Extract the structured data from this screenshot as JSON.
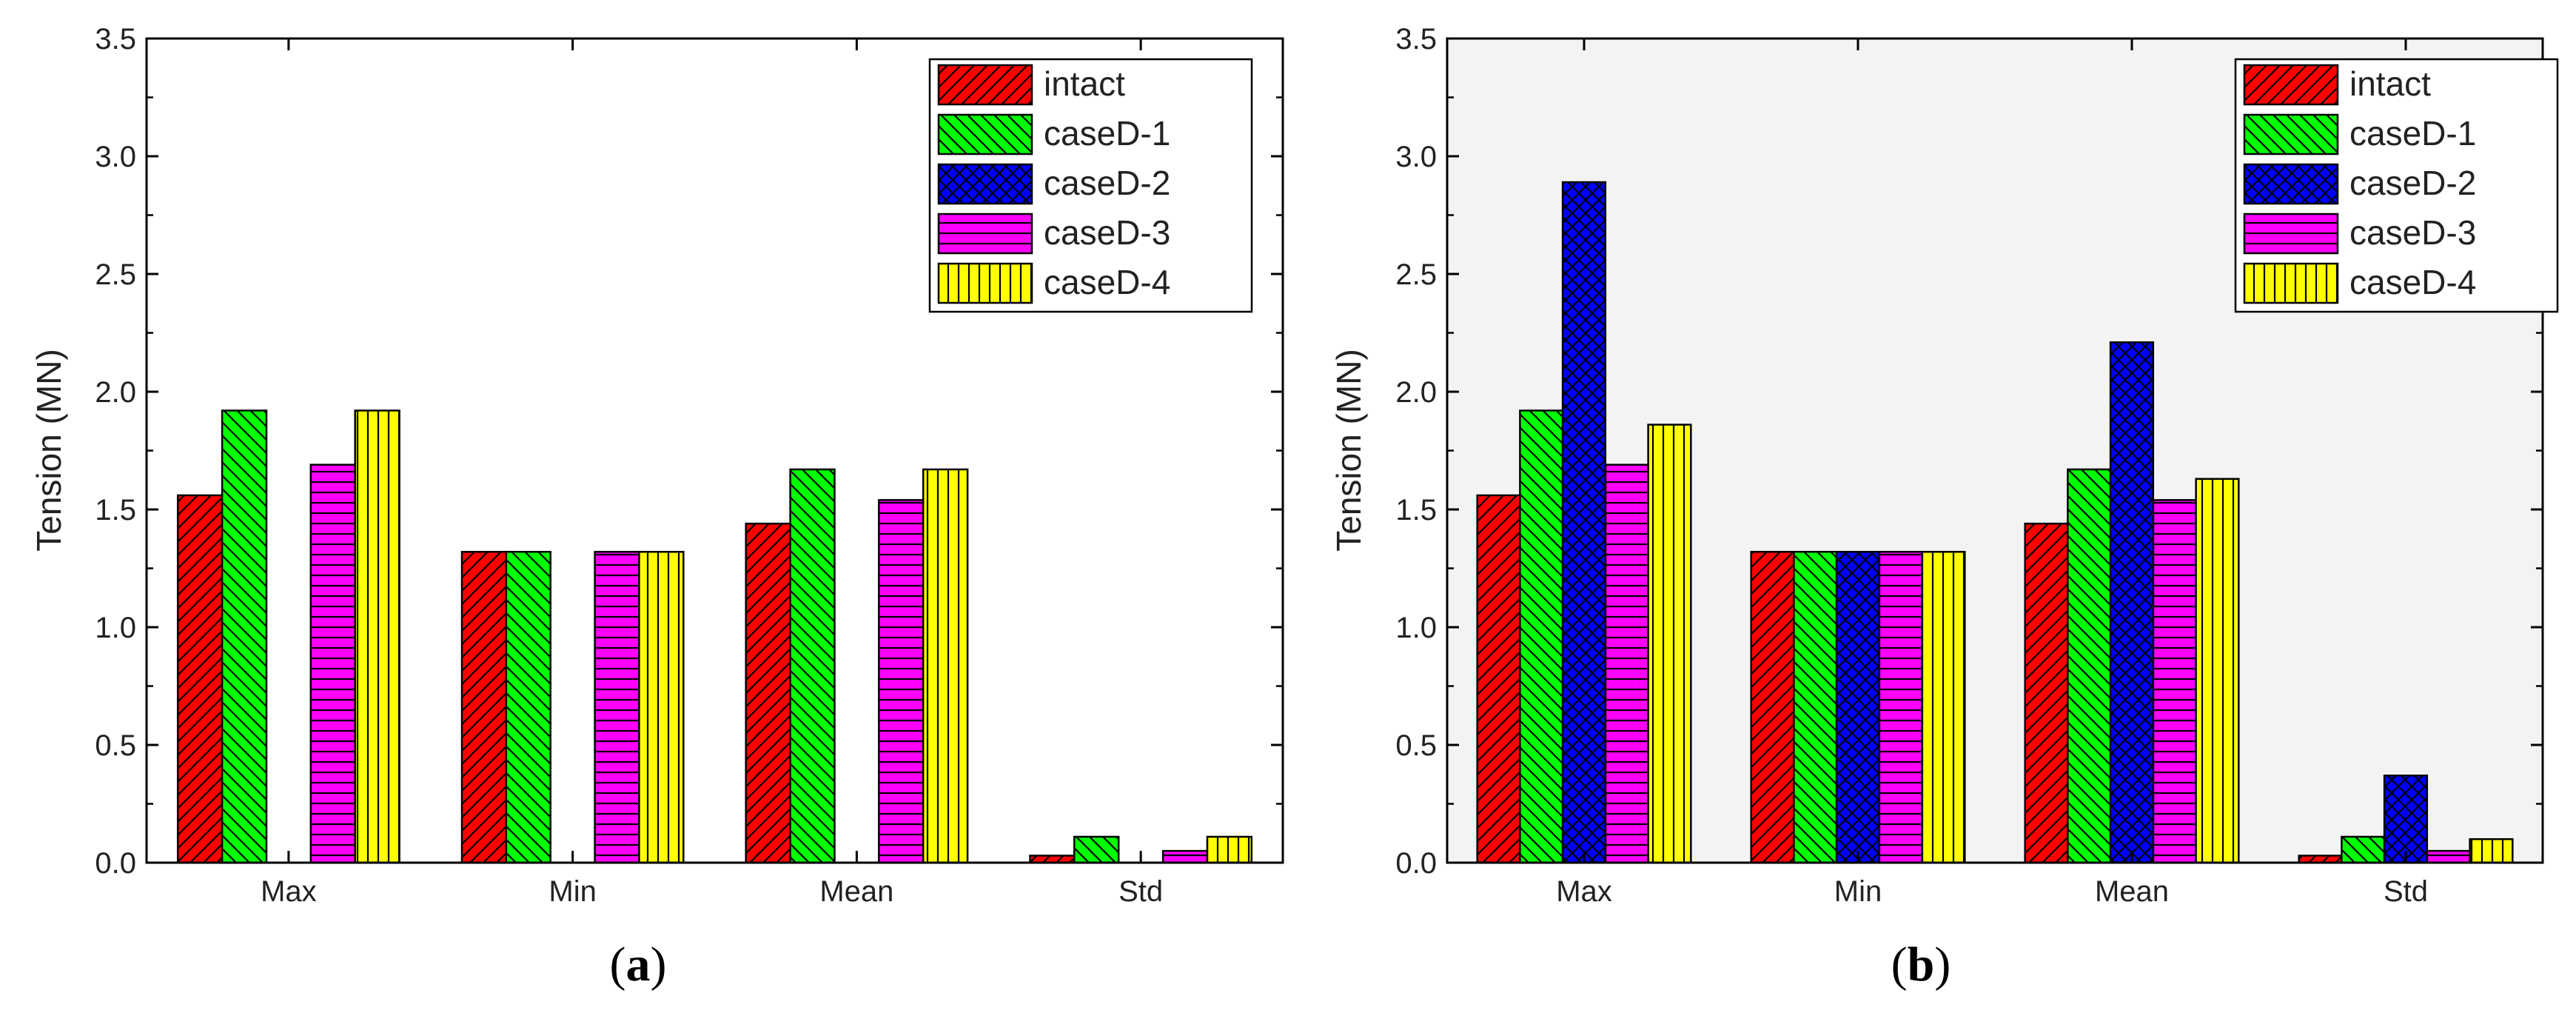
{
  "chart_data": [
    {
      "panel_label": "a",
      "type": "bar",
      "ylabel": "Tension (MN)",
      "xlabel": "",
      "ylim": [
        0,
        3.5
      ],
      "yticks": [
        "0.0",
        "0.5",
        "1.0",
        "1.5",
        "2.0",
        "2.5",
        "3.0",
        "3.5"
      ],
      "categories": [
        "Max",
        "Min",
        "Mean",
        "Std"
      ],
      "legend_position": "top-right",
      "series": [
        {
          "name": "intact",
          "color": "#ff0000",
          "pattern": "diag-fwd",
          "values": [
            1.56,
            1.32,
            1.44,
            0.03
          ]
        },
        {
          "name": "caseD-1",
          "color": "#00ff00",
          "pattern": "diag-back",
          "values": [
            1.92,
            1.32,
            1.67,
            0.11
          ]
        },
        {
          "name": "caseD-2",
          "color": "#0000ff",
          "pattern": "cross",
          "values": [
            0,
            0,
            0,
            0
          ]
        },
        {
          "name": "caseD-3",
          "color": "#ff00ff",
          "pattern": "horiz",
          "values": [
            1.69,
            1.32,
            1.54,
            0.05
          ]
        },
        {
          "name": "caseD-4",
          "color": "#ffff00",
          "pattern": "vert",
          "values": [
            1.92,
            1.32,
            1.67,
            0.11
          ]
        }
      ]
    },
    {
      "panel_label": "b",
      "type": "bar",
      "ylabel": "Tension (MN)",
      "xlabel": "",
      "ylim": [
        0,
        3.5
      ],
      "yticks": [
        "0.0",
        "0.5",
        "1.0",
        "1.5",
        "2.0",
        "2.5",
        "3.0",
        "3.5"
      ],
      "categories": [
        "Max",
        "Min",
        "Mean",
        "Std"
      ],
      "legend_position": "top-right",
      "series": [
        {
          "name": "intact",
          "color": "#ff0000",
          "pattern": "diag-fwd",
          "values": [
            1.56,
            1.32,
            1.44,
            0.03
          ]
        },
        {
          "name": "caseD-1",
          "color": "#00ff00",
          "pattern": "diag-back",
          "values": [
            1.92,
            1.32,
            1.67,
            0.11
          ]
        },
        {
          "name": "caseD-2",
          "color": "#0000ff",
          "pattern": "cross",
          "values": [
            2.89,
            1.32,
            2.21,
            0.37
          ]
        },
        {
          "name": "caseD-3",
          "color": "#ff00ff",
          "pattern": "horiz",
          "values": [
            1.69,
            1.32,
            1.54,
            0.05
          ]
        },
        {
          "name": "caseD-4",
          "color": "#ffff00",
          "pattern": "vert",
          "values": [
            1.86,
            1.32,
            1.63,
            0.1
          ]
        }
      ]
    }
  ]
}
